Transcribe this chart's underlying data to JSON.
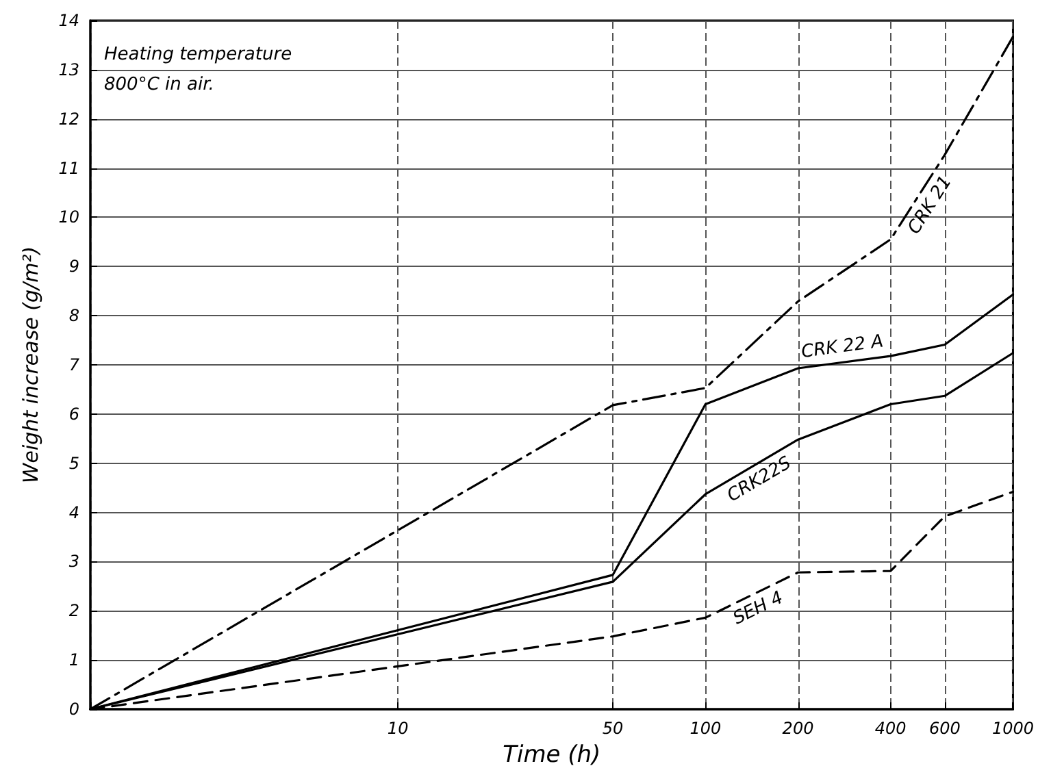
{
  "chart_data": {
    "type": "line",
    "xlabel": "Time (h)",
    "ylabel": "Weight increase (g/m²)",
    "annotations": [
      "Heating temperature 800°C in air."
    ],
    "log": "x",
    "xlim": [
      1,
      1000
    ],
    "xticks": [
      {
        "value": 1,
        "label": null
      },
      10,
      50,
      100,
      200,
      400,
      600,
      1000
    ],
    "ylim": [
      0,
      14
    ],
    "yticks": [
      0,
      1,
      2,
      3,
      4,
      5,
      6,
      7,
      8,
      9,
      10,
      11,
      12,
      13,
      14
    ],
    "grid": true,
    "legend": false,
    "marker": "none",
    "x": [
      1,
      50,
      100,
      200,
      400,
      600,
      1000
    ],
    "series": [
      {
        "name": "CRK 21",
        "color": "#000000",
        "line_style": "dashdot",
        "values": [
          0,
          6.18,
          6.53,
          8.29,
          9.55,
          11.27,
          13.67
        ]
      },
      {
        "name": "CRK 22 A",
        "color": "#000000",
        "line_style": "solid",
        "values": [
          0,
          2.73,
          6.2,
          6.93,
          7.18,
          7.41,
          8.43
        ]
      },
      {
        "name": "CRK22S",
        "color": "#000000",
        "line_style": "solid",
        "values": [
          0,
          2.59,
          4.37,
          5.48,
          6.2,
          6.37,
          7.24
        ]
      },
      {
        "name": "SEH 4",
        "color": "#000000",
        "line_style": "dashed",
        "values": [
          0,
          1.48,
          1.86,
          2.78,
          2.81,
          3.92,
          4.42
        ]
      }
    ]
  }
}
